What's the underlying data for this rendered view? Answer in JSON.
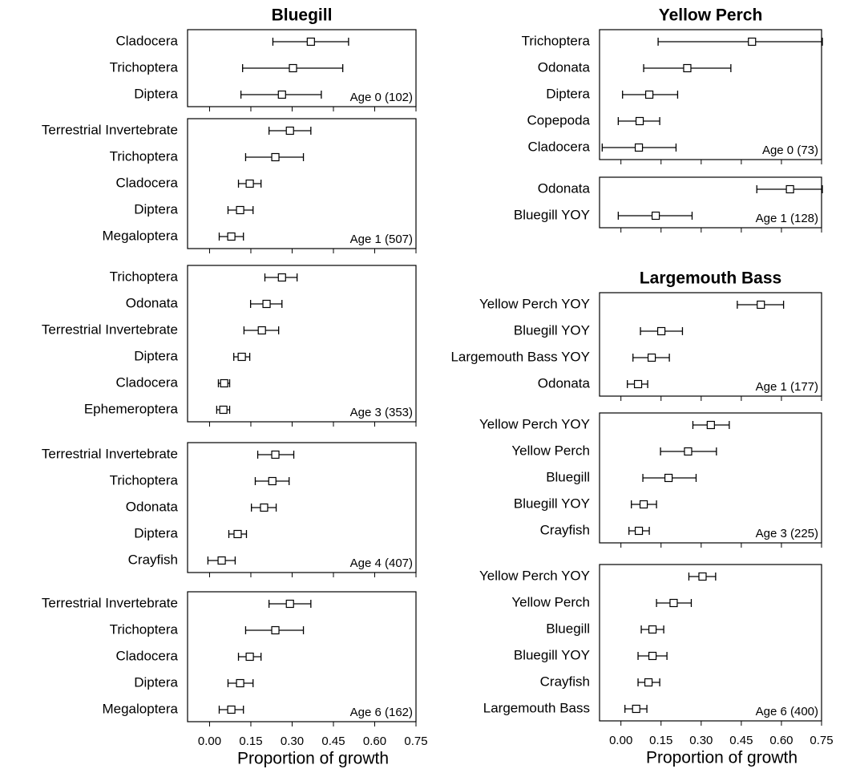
{
  "chart_data": [
    {
      "type": "errorbar",
      "title": "Bluegill",
      "annotation": "Age 0 (102)",
      "categories": [
        "Cladocera",
        "Trichoptera",
        "Diptera"
      ],
      "values": [
        0.368,
        0.303,
        0.263
      ],
      "ci_low": [
        0.23,
        0.12,
        0.114
      ],
      "ci_high": [
        0.505,
        0.484,
        0.406
      ],
      "xlim": [
        -0.08,
        0.75
      ],
      "xticks": [
        0,
        0.15,
        0.3,
        0.45,
        0.6,
        0.75
      ]
    },
    {
      "type": "errorbar",
      "annotation": "Age 1 (507)",
      "categories": [
        "Terrestrial Invertebrate",
        "Trichoptera",
        "Cladocera",
        "Diptera",
        "Megaloptera"
      ],
      "values": [
        0.292,
        0.239,
        0.146,
        0.111,
        0.079
      ],
      "ci_low": [
        0.216,
        0.131,
        0.105,
        0.067,
        0.035
      ],
      "ci_high": [
        0.368,
        0.341,
        0.187,
        0.158,
        0.123
      ],
      "xlim": [
        -0.08,
        0.75
      ],
      "xticks": [
        0,
        0.15,
        0.3,
        0.45,
        0.6,
        0.75
      ]
    },
    {
      "type": "errorbar",
      "annotation": "Age 3 (353)",
      "categories": [
        "Trichoptera",
        "Odonata",
        "Terrestrial Invertebrate",
        "Diptera",
        "Cladocera",
        "Ephemeroptera"
      ],
      "values": [
        0.263,
        0.207,
        0.19,
        0.117,
        0.053,
        0.05
      ],
      "ci_low": [
        0.201,
        0.149,
        0.125,
        0.088,
        0.032,
        0.026
      ],
      "ci_high": [
        0.318,
        0.263,
        0.251,
        0.146,
        0.073,
        0.073
      ],
      "xlim": [
        -0.08,
        0.75
      ],
      "xticks": [
        0,
        0.15,
        0.3,
        0.45,
        0.6,
        0.75
      ]
    },
    {
      "type": "errorbar",
      "annotation": "Age 4 (407)",
      "categories": [
        "Terrestrial Invertebrate",
        "Trichoptera",
        "Odonata",
        "Diptera",
        "Crayfish"
      ],
      "values": [
        0.239,
        0.228,
        0.198,
        0.102,
        0.044
      ],
      "ci_low": [
        0.175,
        0.166,
        0.152,
        0.07,
        -0.006
      ],
      "ci_high": [
        0.306,
        0.289,
        0.242,
        0.134,
        0.093
      ],
      "xlim": [
        -0.08,
        0.75
      ],
      "xticks": [
        0,
        0.15,
        0.3,
        0.45,
        0.6,
        0.75
      ]
    },
    {
      "type": "errorbar",
      "annotation": "Age 6 (162)",
      "categories": [
        "Terrestrial Invertebrate",
        "Trichoptera",
        "Cladocera",
        "Diptera",
        "Megaloptera"
      ],
      "values": [
        0.292,
        0.239,
        0.146,
        0.111,
        0.079
      ],
      "ci_low": [
        0.216,
        0.131,
        0.105,
        0.067,
        0.035
      ],
      "ci_high": [
        0.368,
        0.341,
        0.187,
        0.158,
        0.123
      ],
      "xlim": [
        -0.08,
        0.75
      ],
      "xticks": [
        {
          "value": 0,
          "label": "0.00"
        },
        {
          "value": 0.15,
          "label": "0.15"
        },
        {
          "value": 0.3,
          "label": "0.30"
        },
        {
          "value": 0.45,
          "label": "0.45"
        },
        {
          "value": 0.6,
          "label": "0.60"
        },
        {
          "value": 0.75,
          "label": "0.75"
        }
      ],
      "x_label": "Proportion of growth"
    },
    {
      "type": "errorbar",
      "title": "Yellow Perch",
      "annotation": "Age 0 (73)",
      "categories": [
        "Trichoptera",
        "Odonata",
        "Diptera",
        "Copepoda",
        "Cladocera"
      ],
      "values": [
        0.49,
        0.248,
        0.106,
        0.07,
        0.067
      ],
      "ci_low": [
        0.139,
        0.085,
        0.006,
        -0.01,
        -0.07
      ],
      "ci_high": [
        0.753,
        0.411,
        0.212,
        0.145,
        0.206
      ],
      "xlim": [
        -0.08,
        0.75
      ],
      "xticks": [
        0,
        0.15,
        0.3,
        0.45,
        0.6,
        0.75
      ]
    },
    {
      "type": "errorbar",
      "annotation": "Age 1 (128)",
      "categories": [
        "Odonata",
        "Bluegill YOY"
      ],
      "values": [
        0.632,
        0.13
      ],
      "ci_low": [
        0.508,
        -0.01
      ],
      "ci_high": [
        0.753,
        0.266
      ],
      "xlim": [
        -0.08,
        0.75
      ],
      "xticks": [
        0,
        0.15,
        0.3,
        0.45,
        0.6,
        0.75
      ]
    },
    {
      "type": "errorbar",
      "title": "Largemouth Bass",
      "annotation": "Age 1 (177)",
      "categories": [
        "Yellow Perch YOY",
        "Bluegill YOY",
        "Largemouth Bass YOY",
        "Odonata"
      ],
      "values": [
        0.523,
        0.151,
        0.115,
        0.064
      ],
      "ci_low": [
        0.435,
        0.073,
        0.045,
        0.024
      ],
      "ci_high": [
        0.608,
        0.23,
        0.181,
        0.1
      ],
      "xlim": [
        -0.08,
        0.75
      ],
      "xticks": [
        0,
        0.15,
        0.3,
        0.45,
        0.6,
        0.75
      ]
    },
    {
      "type": "errorbar",
      "annotation": "Age 3 (225)",
      "categories": [
        "Yellow Perch YOY",
        "Yellow Perch",
        "Bluegill",
        "Bluegill YOY",
        "Crayfish"
      ],
      "values": [
        0.336,
        0.251,
        0.178,
        0.085,
        0.067
      ],
      "ci_low": [
        0.269,
        0.148,
        0.082,
        0.039,
        0.03
      ],
      "ci_high": [
        0.405,
        0.357,
        0.281,
        0.133,
        0.106
      ],
      "xlim": [
        -0.08,
        0.75
      ],
      "xticks": [
        0,
        0.15,
        0.3,
        0.45,
        0.6,
        0.75
      ]
    },
    {
      "type": "errorbar",
      "annotation": "Age 6 (400)",
      "categories": [
        "Yellow Perch YOY",
        "Yellow Perch",
        "Bluegill",
        "Bluegill YOY",
        "Crayfish",
        "Largemouth Bass"
      ],
      "values": [
        0.305,
        0.197,
        0.118,
        0.118,
        0.103,
        0.057
      ],
      "ci_low": [
        0.254,
        0.133,
        0.076,
        0.064,
        0.064,
        0.015
      ],
      "ci_high": [
        0.354,
        0.263,
        0.16,
        0.172,
        0.145,
        0.097
      ],
      "xlim": [
        -0.08,
        0.75
      ],
      "xticks": [
        {
          "value": 0,
          "label": "0.00"
        },
        {
          "value": 0.15,
          "label": "0.15"
        },
        {
          "value": 0.3,
          "label": "0.30"
        },
        {
          "value": 0.45,
          "label": "0.45"
        },
        {
          "value": 0.6,
          "label": "0.60"
        },
        {
          "value": 0.75,
          "label": "0.75"
        }
      ],
      "x_label": "Proportion of growth"
    }
  ]
}
